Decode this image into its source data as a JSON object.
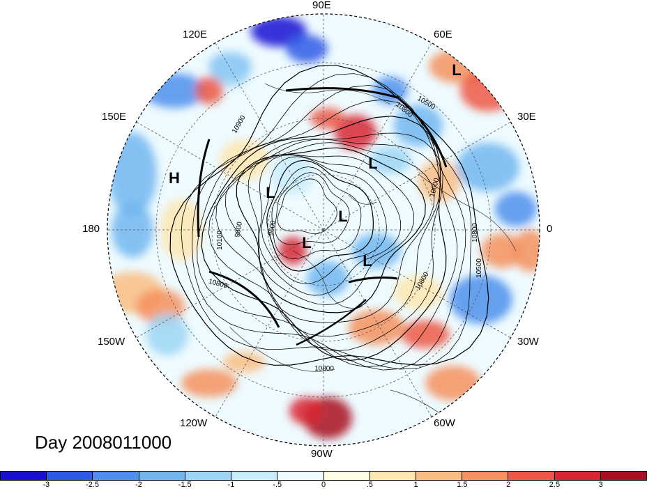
{
  "title": "Day 2008011000",
  "longitude_labels": [
    {
      "id": "90e",
      "text": "90E"
    },
    {
      "id": "60e",
      "text": "60E"
    },
    {
      "id": "30e",
      "text": "30E"
    },
    {
      "id": "0",
      "text": "0"
    },
    {
      "id": "30w",
      "text": "30W"
    },
    {
      "id": "60w",
      "text": "60W"
    },
    {
      "id": "90w",
      "text": "90W"
    },
    {
      "id": "120w",
      "text": "120W"
    },
    {
      "id": "150w",
      "text": "150W"
    },
    {
      "id": "180",
      "text": "180"
    },
    {
      "id": "150e",
      "text": "150E"
    },
    {
      "id": "120e",
      "text": "120E"
    }
  ],
  "pressure_centers": [
    {
      "type": "H",
      "text": "H"
    },
    {
      "type": "L",
      "text": "L"
    },
    {
      "type": "L",
      "text": "L"
    },
    {
      "type": "L",
      "text": "L"
    },
    {
      "type": "L",
      "text": "L"
    },
    {
      "type": "L",
      "text": "L"
    },
    {
      "type": "L",
      "text": "L"
    }
  ],
  "contour_labels": [
    "10900",
    "10800",
    "10800",
    "10800",
    "10800",
    "10800",
    "10600",
    "10500",
    "10500",
    "10100",
    "9800",
    "9600"
  ],
  "colorbar": {
    "colors": [
      "#1a0fd4",
      "#2d5be6",
      "#4c8fec",
      "#72b6f0",
      "#9cd5f6",
      "#c9ecfb",
      "#eefbff",
      "#fffde4",
      "#fde6b0",
      "#f9bd82",
      "#f5915e",
      "#ed5747",
      "#d82532",
      "#a80f22"
    ],
    "tick_labels": [
      "-3",
      "-2.5",
      "-2",
      "-1.5",
      "-1",
      "-.5",
      "0",
      ".5",
      "1",
      "1.5",
      "2",
      "2.5",
      "3"
    ]
  }
}
